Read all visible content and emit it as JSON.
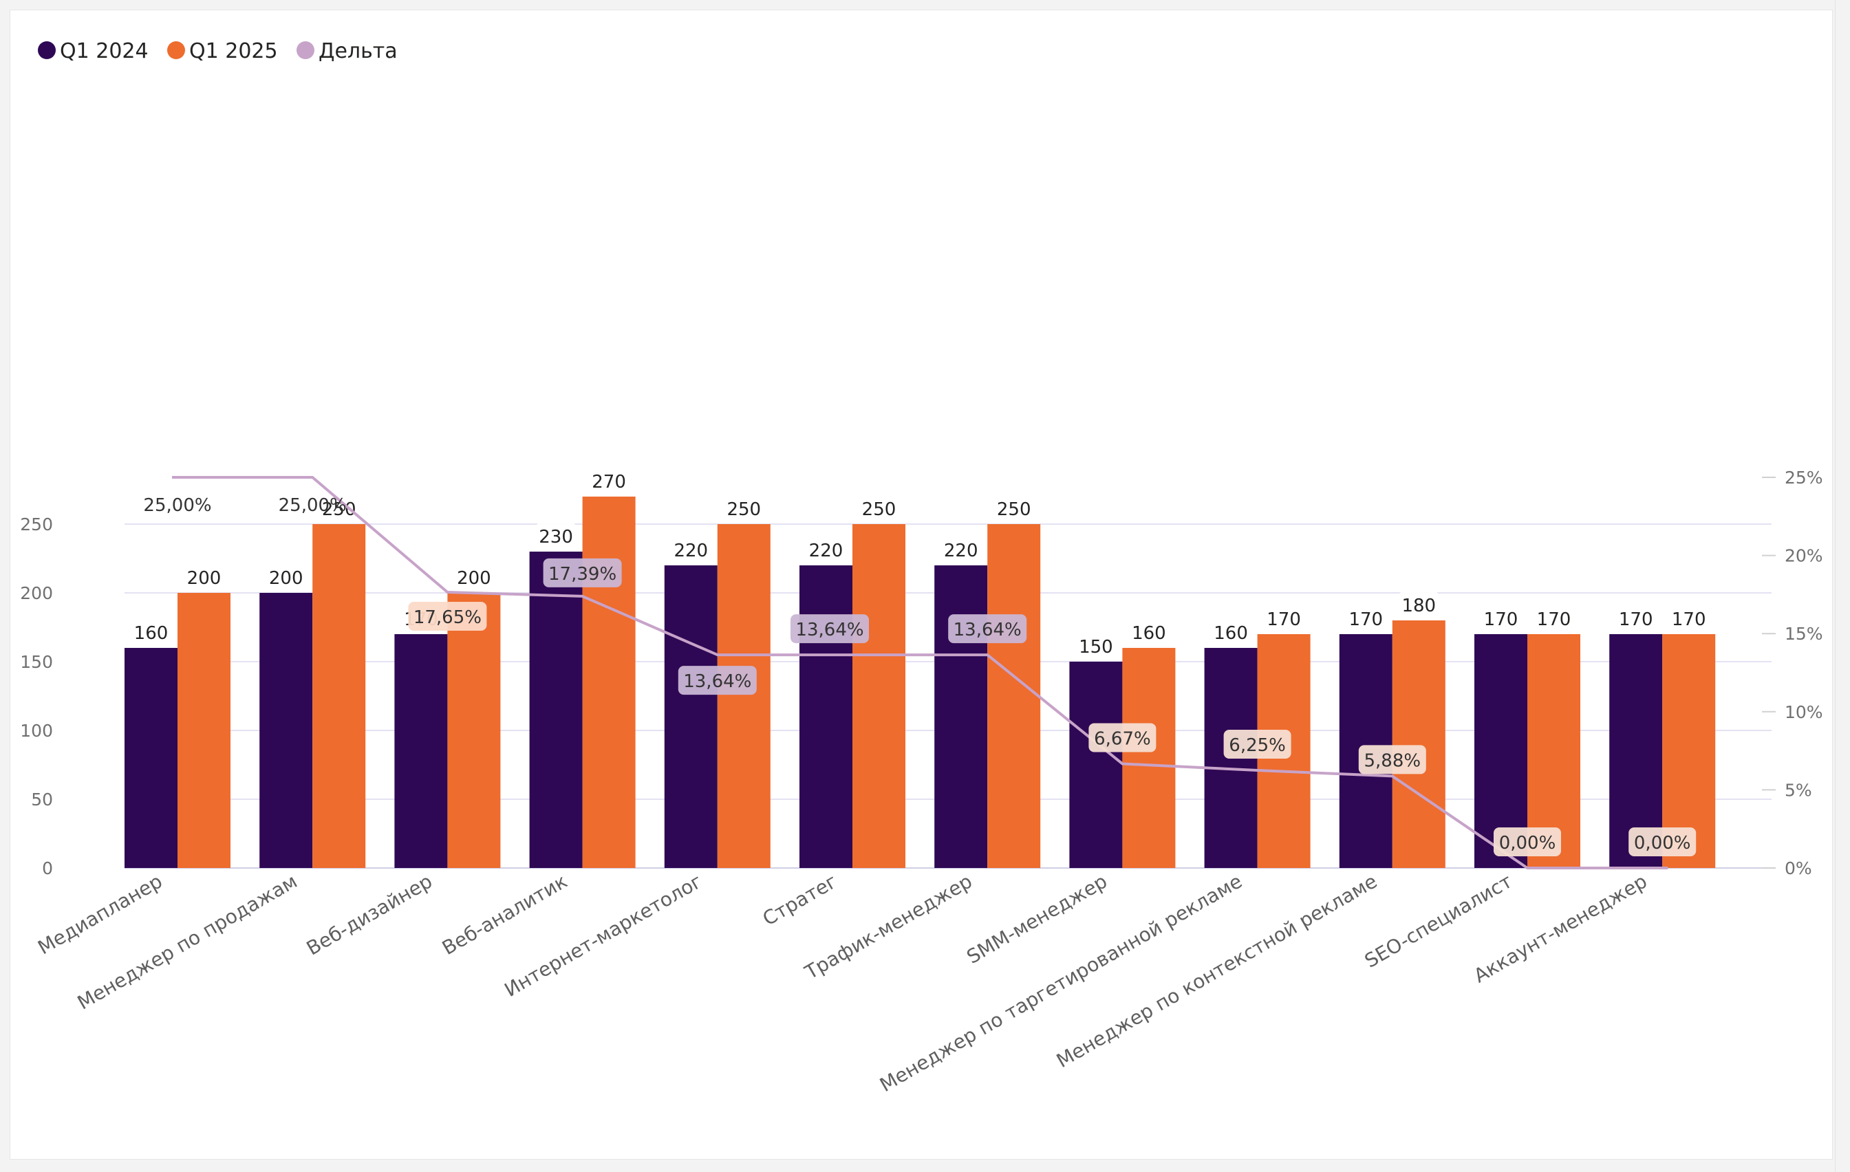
{
  "chart_data": {
    "type": "bar",
    "title": "",
    "xlabel": "",
    "ylabel": "",
    "ylim": [
      0,
      290
    ],
    "y2lim": [
      0,
      25
    ],
    "y2_unit": "%",
    "grid": true,
    "legend_position": "top-left",
    "categories": [
      "Медиапланер",
      "Менеджер по продажам",
      "Веб-дизайнер",
      "Веб-аналитик",
      "Интернет-маркетолог",
      "Стратег",
      "Трафик-менеджер",
      "SMM-менеджер",
      "Менеджер по таргетированной рекламе",
      "Менеджер по контекстной рекламе",
      "SEO-специалист",
      "Аккаунт-менеджер"
    ],
    "series": [
      {
        "name": "Q1 2024",
        "type": "bar",
        "color": "#2e0854",
        "values": [
          160,
          200,
          170,
          230,
          220,
          220,
          220,
          150,
          160,
          170,
          170,
          170
        ]
      },
      {
        "name": "Q1 2025",
        "type": "bar",
        "color": "#ee6c2e",
        "values": [
          200,
          250,
          200,
          270,
          250,
          250,
          250,
          160,
          170,
          180,
          170,
          170
        ]
      },
      {
        "name": "Дельта",
        "type": "line",
        "axis": "right",
        "color": "#c7a3c9",
        "values": [
          25.0,
          25.0,
          17.65,
          17.39,
          13.64,
          13.64,
          13.64,
          6.67,
          6.25,
          5.88,
          0.0,
          0.0
        ],
        "labels": [
          "25,00%",
          "25,00%",
          "17,65%",
          "17,39%",
          "13,64%",
          "13,64%",
          "13,64%",
          "6,67%",
          "6,25%",
          "5,88%",
          "0,00%",
          "0,00%"
        ]
      }
    ],
    "y_ticks": [
      0,
      50,
      100,
      150,
      200,
      250
    ],
    "y_tick_labels": [
      "0",
      "50",
      "100",
      "150",
      "200",
      "250"
    ],
    "y2_ticks": [
      0,
      5,
      10,
      15,
      20,
      25
    ],
    "y2_tick_labels": [
      "0%",
      "5%",
      "10%",
      "15%",
      "20%",
      "25%"
    ]
  }
}
